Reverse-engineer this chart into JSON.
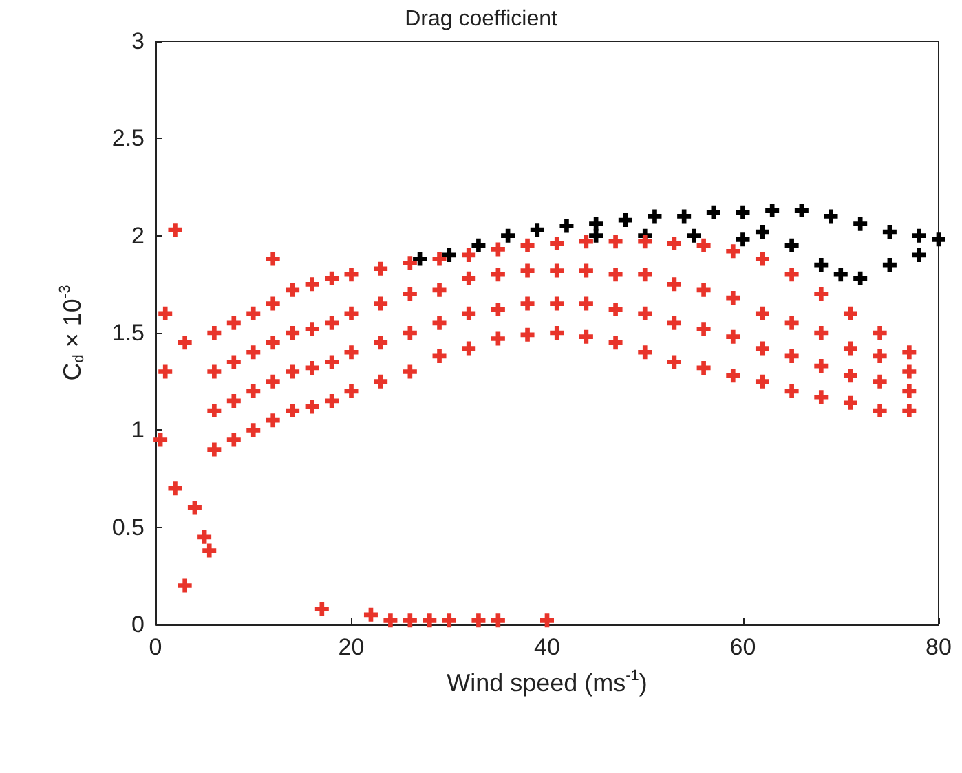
{
  "chart_data": {
    "type": "scatter",
    "title": "Drag coefficient",
    "xlabel": "Wind speed (ms$^{-1}$)",
    "ylabel": "C$_{d}$ × 10$^{-3}$",
    "xlim": [
      0,
      80
    ],
    "xticks": [
      0,
      20,
      40,
      60,
      80
    ],
    "ylim": [
      0,
      3
    ],
    "yticks": [
      0,
      0.5,
      1,
      1.5,
      2,
      2.5,
      3
    ],
    "grid": false,
    "marker": "cross",
    "series": [
      {
        "color": "#000000",
        "x": [
          27,
          30,
          33,
          36,
          39,
          42,
          45,
          48,
          51,
          54,
          57,
          60,
          63,
          66,
          69,
          72,
          75,
          78,
          80,
          45,
          50,
          55,
          60,
          62,
          65,
          68,
          70,
          72,
          75,
          78
        ],
        "values": [
          1.88,
          1.9,
          1.95,
          2.0,
          2.03,
          2.05,
          2.06,
          2.08,
          2.1,
          2.1,
          2.12,
          2.12,
          2.13,
          2.13,
          2.1,
          2.06,
          2.02,
          2.0,
          1.98,
          2.0,
          2.0,
          2.0,
          1.98,
          2.02,
          1.95,
          1.85,
          1.8,
          1.78,
          1.85,
          1.9
        ]
      },
      {
        "color": "#e8342a",
        "x": [
          6,
          6,
          6,
          6,
          8,
          8,
          8,
          8,
          10,
          10,
          10,
          10,
          12,
          12,
          12,
          12,
          14,
          14,
          14,
          14,
          16,
          16,
          16,
          16,
          18,
          18,
          18,
          18,
          20,
          20,
          20,
          20,
          23,
          23,
          23,
          23,
          26,
          26,
          26,
          26,
          29,
          29,
          29,
          29,
          32,
          32,
          32,
          32,
          35,
          35,
          35,
          35,
          38,
          38,
          38,
          38,
          41,
          41,
          41,
          41,
          44,
          44,
          44,
          44,
          47,
          47,
          47,
          47,
          50,
          50,
          50,
          50,
          53,
          53,
          53,
          53,
          56,
          56,
          56,
          56,
          59,
          59,
          59,
          59,
          62,
          62,
          62,
          62,
          65,
          65,
          65,
          65,
          68,
          68,
          68,
          68,
          71,
          71,
          71,
          71,
          74,
          74,
          74,
          74,
          77,
          77,
          77,
          77,
          2,
          1,
          1,
          0.5,
          2,
          3,
          4,
          5,
          5.5,
          3,
          12,
          17,
          22,
          24,
          26,
          28,
          30,
          33,
          35,
          40
        ],
        "values": [
          0.9,
          1.1,
          1.3,
          1.5,
          0.95,
          1.15,
          1.35,
          1.55,
          1.0,
          1.2,
          1.4,
          1.6,
          1.05,
          1.25,
          1.45,
          1.65,
          1.1,
          1.3,
          1.5,
          1.72,
          1.12,
          1.32,
          1.52,
          1.75,
          1.15,
          1.35,
          1.55,
          1.78,
          1.2,
          1.4,
          1.6,
          1.8,
          1.25,
          1.45,
          1.65,
          1.83,
          1.3,
          1.5,
          1.7,
          1.86,
          1.38,
          1.55,
          1.72,
          1.88,
          1.42,
          1.6,
          1.78,
          1.9,
          1.47,
          1.62,
          1.8,
          1.93,
          1.49,
          1.65,
          1.82,
          1.95,
          1.5,
          1.65,
          1.82,
          1.96,
          1.48,
          1.65,
          1.82,
          1.97,
          1.45,
          1.62,
          1.8,
          1.97,
          1.4,
          1.6,
          1.8,
          1.97,
          1.35,
          1.55,
          1.75,
          1.96,
          1.32,
          1.52,
          1.72,
          1.95,
          1.28,
          1.48,
          1.68,
          1.92,
          1.25,
          1.42,
          1.6,
          1.88,
          1.2,
          1.38,
          1.55,
          1.8,
          1.17,
          1.33,
          1.5,
          1.7,
          1.14,
          1.28,
          1.42,
          1.6,
          1.1,
          1.25,
          1.38,
          1.5,
          1.1,
          1.2,
          1.3,
          1.4,
          2.03,
          1.6,
          1.3,
          0.95,
          0.7,
          0.2,
          0.6,
          0.45,
          0.38,
          1.45,
          1.88,
          0.08,
          0.05,
          0.02,
          0.02,
          0.02,
          0.02,
          0.02,
          0.02,
          0.02
        ]
      }
    ]
  }
}
